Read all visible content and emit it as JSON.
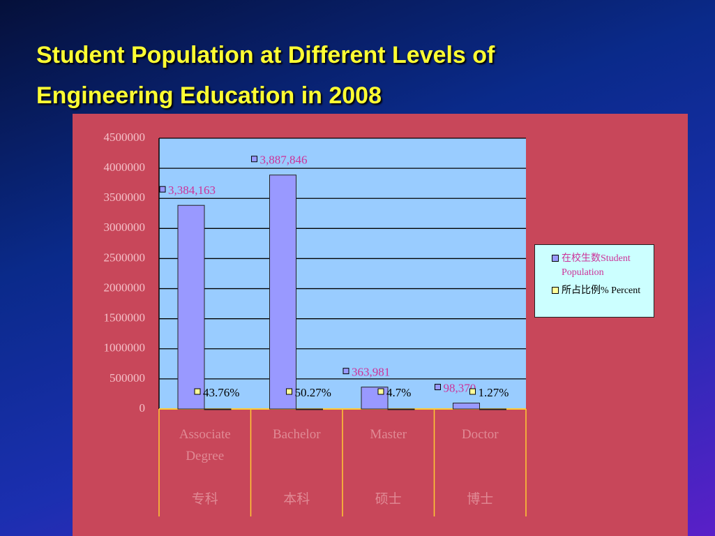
{
  "chart_data": {
    "type": "bar",
    "title": "Student Population at Different Levels of Engineering Education in 2008",
    "categories": [
      "Associate Degree",
      "Bachelor",
      "Master",
      "Doctor"
    ],
    "categories_zh": [
      "专科",
      "本科",
      "硕士",
      "博士"
    ],
    "series": [
      {
        "name": "在校生数Student Population",
        "color": "#9999ff",
        "values": [
          3384163,
          3887846,
          363981,
          98370
        ],
        "value_labels": [
          "3,384,163",
          "3,887,846",
          "363,981",
          "98,370"
        ]
      },
      {
        "name": "所占比例% Percent",
        "color": "#9999ff",
        "values": [
          43.76,
          50.27,
          4.7,
          1.27
        ],
        "value_labels": [
          "43.76%",
          "50.27%",
          "4.7%",
          "1.27%"
        ]
      }
    ],
    "ylim": [
      0,
      4500000
    ],
    "yticks": [
      0,
      500000,
      1000000,
      1500000,
      2000000,
      2500000,
      3000000,
      3500000,
      4000000,
      4500000
    ],
    "grid": true,
    "legend": "right"
  }
}
